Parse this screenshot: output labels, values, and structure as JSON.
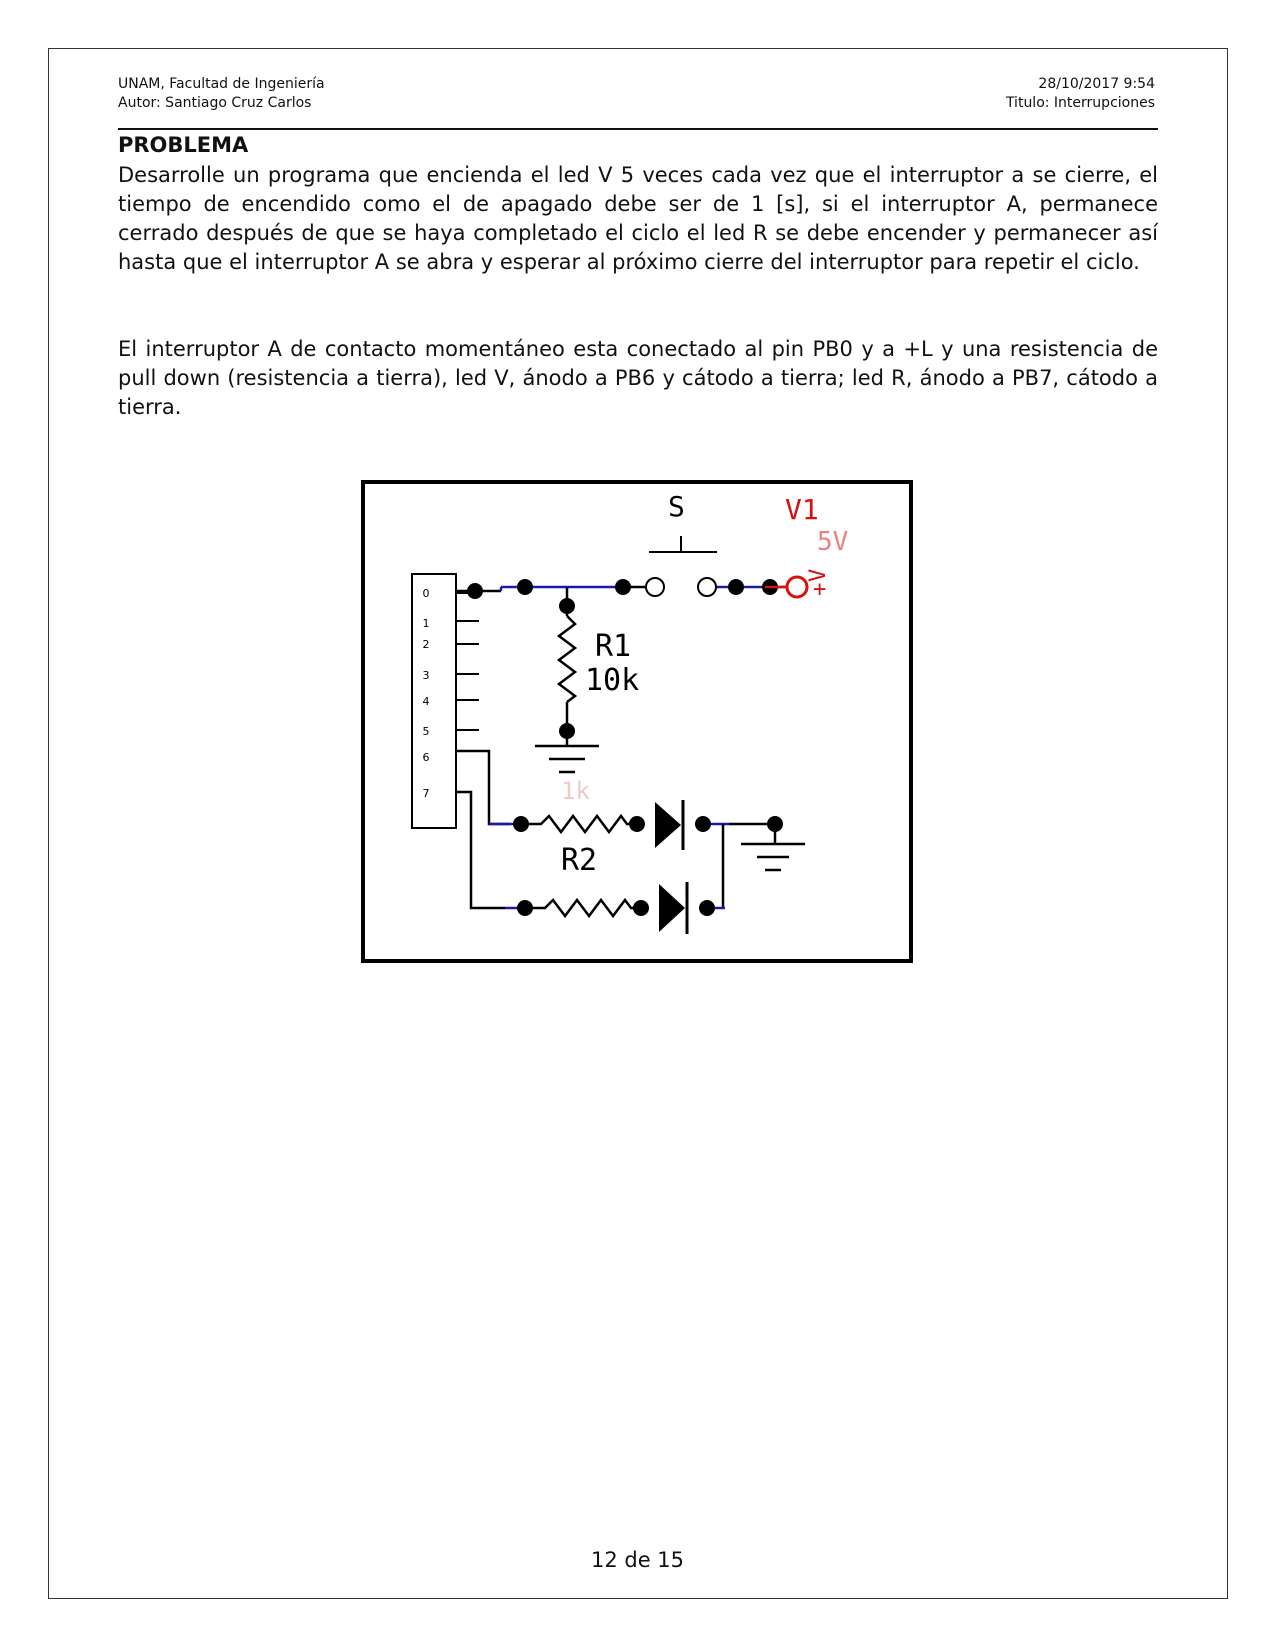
{
  "header": {
    "institution": "UNAM, Facultad de Ingeniería",
    "author": "Autor: Santiago Cruz Carlos",
    "datetime": "28/10/2017 9:54",
    "title": "Titulo: Interrupciones"
  },
  "section_title": "PROBLEMA",
  "paragraphs": [
    "Desarrolle un programa que encienda el led V 5 veces cada vez que el interruptor a se cierre, el tiempo de encendido como el de apagado debe ser de 1 [s], si el interruptor A, permanece cerrado después de que se haya completado el ciclo el led R se debe encender y permanecer así hasta que el interruptor A se abra y esperar al próximo cierre del interruptor para repetir el ciclo.",
    "El interruptor A de contacto momentáneo esta conectado al pin PB0 y a +L y una resistencia de pull down (resistencia a tierra), led V, ánodo a PB6 y cátodo a tierra; led R, ánodo a PB7, cátodo a tierra."
  ],
  "circuit": {
    "pin_labels": [
      "0",
      "1",
      "2",
      "3",
      "4",
      "5",
      "6",
      "7"
    ],
    "switch_label": "S",
    "source_label": "V1",
    "source_value": "5V",
    "source_plus": "+",
    "source_v": "V",
    "r1_label": "R1",
    "r1_value": "10k",
    "r_faint_value": "1k",
    "r2_label": "R2",
    "colors": {
      "wire_blue": "#1a1aa8",
      "source_red": "#d81010",
      "faint": "#f2c8c8"
    }
  },
  "footer": {
    "page": "12 de 15"
  }
}
